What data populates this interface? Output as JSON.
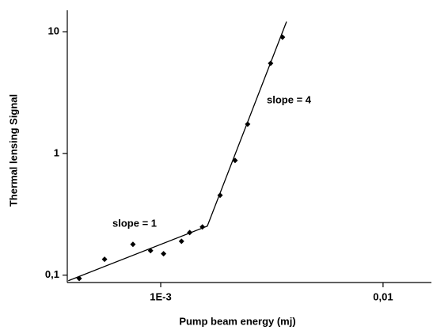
{
  "chart_data": {
    "type": "scatter",
    "xlabel": "Pump beam energy (mj)",
    "ylabel": "Thermal lensing Signal",
    "xlog": true,
    "ylog": true,
    "xlim": [
      0.00038,
      0.0165
    ],
    "ylim": [
      0.087,
      15
    ],
    "xticks": [
      {
        "value": 0.001,
        "label": "1E-3"
      },
      {
        "value": 0.01,
        "label": "0,01"
      }
    ],
    "yticks": [
      {
        "value": 0.1,
        "label": "0,1"
      },
      1,
      10
    ],
    "color": "#000000",
    "x": [
      0.00043,
      0.000559,
      0.00075,
      0.0009,
      0.00103,
      0.00124,
      0.00135,
      0.00154,
      0.00185,
      0.00216,
      0.00246,
      0.00312,
      0.00353
    ],
    "values": [
      0.094,
      0.135,
      0.179,
      0.159,
      0.15,
      0.19,
      0.224,
      0.249,
      0.453,
      0.875,
      1.74,
      5.5,
      9.01
    ],
    "fit": {
      "x": [
        0.000384,
        0.00162,
        0.00368
      ],
      "values": [
        0.09,
        0.253,
        12.1
      ]
    },
    "annotations": [
      "slope = 1",
      "slope = 4"
    ]
  }
}
